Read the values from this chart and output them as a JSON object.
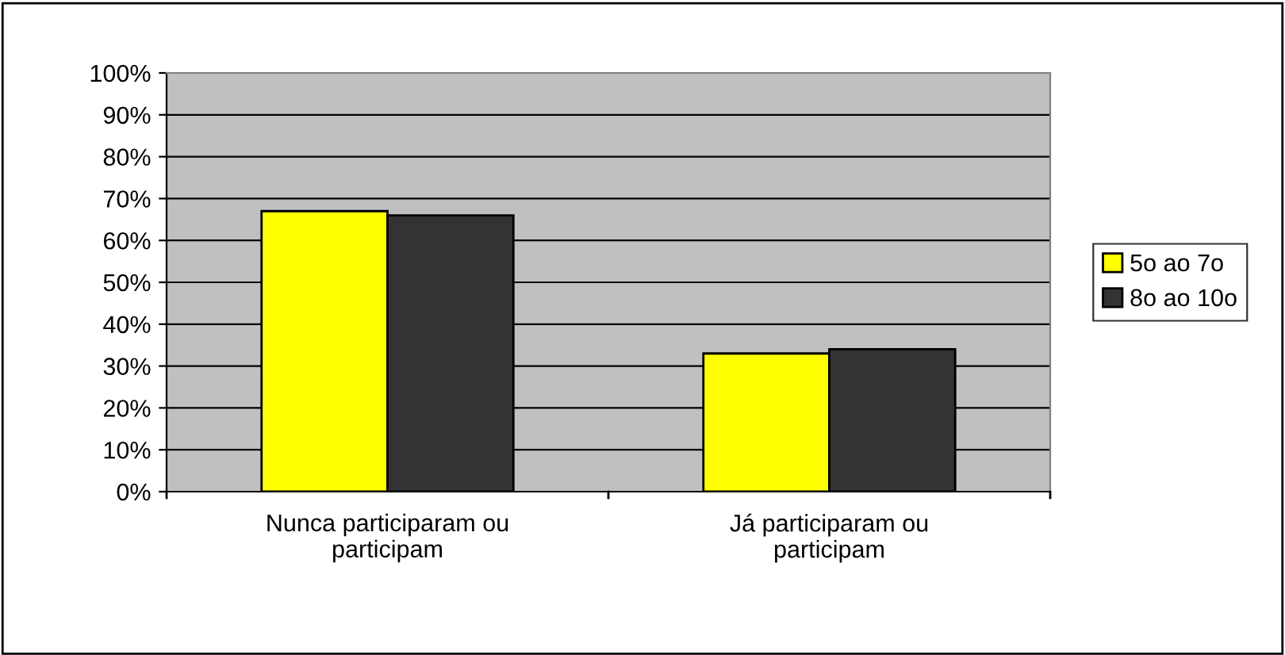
{
  "chart_data": {
    "type": "bar",
    "categories": [
      "Nunca participaram ou\nparticipam",
      "Já participaram ou\nparticipam"
    ],
    "series": [
      {
        "name": "5o ao 7o",
        "color": "#ffff00",
        "values": [
          67,
          33
        ]
      },
      {
        "name": "8o ao 10o",
        "color": "#333333",
        "values": [
          66,
          34
        ]
      }
    ],
    "ylim": [
      0,
      100
    ],
    "yticks": [
      {
        "value": 0,
        "label": "0%"
      },
      {
        "value": 10,
        "label": "10%"
      },
      {
        "value": 20,
        "label": "20%"
      },
      {
        "value": 30,
        "label": "30%"
      },
      {
        "value": 40,
        "label": "40%"
      },
      {
        "value": 50,
        "label": "50%"
      },
      {
        "value": 60,
        "label": "60%"
      },
      {
        "value": 70,
        "label": "70%"
      },
      {
        "value": 80,
        "label": "80%"
      },
      {
        "value": 90,
        "label": "90%"
      },
      {
        "value": 100,
        "label": "100%"
      }
    ],
    "grid": "y",
    "legend": "right"
  }
}
